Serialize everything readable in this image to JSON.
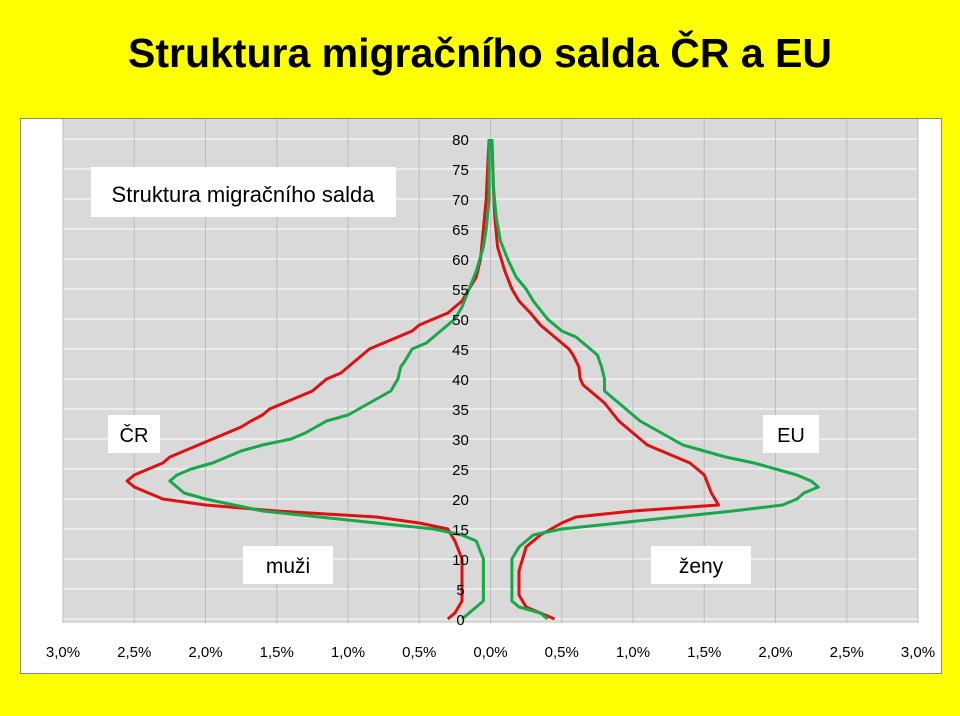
{
  "page": {
    "title": "Struktura migračního salda ČR a EU"
  },
  "chart_data": {
    "type": "line",
    "title": "Struktura migračního salda",
    "left_label": "muži",
    "right_label": "ženy",
    "yticks": [
      "0",
      "5",
      "10",
      "15",
      "20",
      "25",
      "30",
      "35",
      "40",
      "45",
      "50",
      "55",
      "60",
      "65",
      "70",
      "75",
      "80"
    ],
    "xticks": [
      "3,0%",
      "2,5%",
      "2,0%",
      "1,5%",
      "1,0%",
      "0,5%",
      "0,0%",
      "0,5%",
      "1,0%",
      "1,5%",
      "2,0%",
      "2,5%",
      "3,0%"
    ],
    "xlim": [
      -3.0,
      3.0
    ],
    "ylim": [
      0,
      80
    ],
    "grid": true,
    "series": [
      {
        "name": "ČR",
        "color": "#e01010",
        "side": "left",
        "points": [
          [
            0.3,
            0
          ],
          [
            0.25,
            1
          ],
          [
            0.2,
            3
          ],
          [
            0.2,
            6
          ],
          [
            0.2,
            10
          ],
          [
            0.25,
            13
          ],
          [
            0.3,
            15
          ],
          [
            0.5,
            16
          ],
          [
            0.8,
            17
          ],
          [
            1.5,
            18
          ],
          [
            2.0,
            19
          ],
          [
            2.3,
            20
          ],
          [
            2.4,
            21
          ],
          [
            2.5,
            22
          ],
          [
            2.55,
            23
          ],
          [
            2.5,
            24
          ],
          [
            2.4,
            25
          ],
          [
            2.3,
            26
          ],
          [
            2.25,
            27
          ],
          [
            2.15,
            28
          ],
          [
            2.05,
            29
          ],
          [
            1.95,
            30
          ],
          [
            1.85,
            31
          ],
          [
            1.75,
            32
          ],
          [
            1.68,
            33
          ],
          [
            1.6,
            34
          ],
          [
            1.55,
            35
          ],
          [
            1.45,
            36
          ],
          [
            1.35,
            37
          ],
          [
            1.25,
            38
          ],
          [
            1.15,
            40
          ],
          [
            1.05,
            41
          ],
          [
            1.0,
            42
          ],
          [
            0.95,
            43
          ],
          [
            0.9,
            44
          ],
          [
            0.85,
            45
          ],
          [
            0.75,
            46
          ],
          [
            0.65,
            47
          ],
          [
            0.55,
            48
          ],
          [
            0.5,
            49
          ],
          [
            0.4,
            50
          ],
          [
            0.3,
            51
          ],
          [
            0.2,
            53
          ],
          [
            0.15,
            55
          ],
          [
            0.1,
            57
          ],
          [
            0.07,
            60
          ],
          [
            0.05,
            65
          ],
          [
            0.03,
            70
          ],
          [
            0.02,
            75
          ],
          [
            0.01,
            80
          ]
        ]
      },
      {
        "name": "ČR",
        "color": "#e01010",
        "side": "right",
        "points": [
          [
            0.45,
            0
          ],
          [
            0.35,
            1
          ],
          [
            0.25,
            2
          ],
          [
            0.2,
            4
          ],
          [
            0.2,
            8
          ],
          [
            0.25,
            12
          ],
          [
            0.35,
            14
          ],
          [
            0.5,
            16
          ],
          [
            0.6,
            17
          ],
          [
            1.0,
            18
          ],
          [
            1.6,
            19
          ],
          [
            1.55,
            21
          ],
          [
            1.5,
            24
          ],
          [
            1.4,
            26
          ],
          [
            1.3,
            27
          ],
          [
            1.2,
            28
          ],
          [
            1.1,
            29
          ],
          [
            1.0,
            31
          ],
          [
            0.9,
            33
          ],
          [
            0.8,
            36
          ],
          [
            0.7,
            38
          ],
          [
            0.65,
            39
          ],
          [
            0.63,
            40
          ],
          [
            0.62,
            42
          ],
          [
            0.58,
            44
          ],
          [
            0.55,
            45
          ],
          [
            0.5,
            46
          ],
          [
            0.4,
            48
          ],
          [
            0.35,
            49
          ],
          [
            0.28,
            51
          ],
          [
            0.2,
            53
          ],
          [
            0.15,
            55
          ],
          [
            0.1,
            58
          ],
          [
            0.05,
            62
          ],
          [
            0.03,
            67
          ],
          [
            0.02,
            72
          ],
          [
            0.01,
            80
          ]
        ]
      },
      {
        "name": "EU",
        "color": "#18a84a",
        "side": "left",
        "points": [
          [
            0.2,
            0
          ],
          [
            0.1,
            2
          ],
          [
            0.05,
            3
          ],
          [
            0.05,
            6
          ],
          [
            0.05,
            10
          ],
          [
            0.1,
            13
          ],
          [
            0.2,
            14
          ],
          [
            0.4,
            15
          ],
          [
            0.8,
            16
          ],
          [
            1.2,
            17
          ],
          [
            1.6,
            18
          ],
          [
            1.8,
            19
          ],
          [
            2.0,
            20
          ],
          [
            2.15,
            21
          ],
          [
            2.2,
            22
          ],
          [
            2.25,
            23
          ],
          [
            2.2,
            24
          ],
          [
            2.1,
            25
          ],
          [
            1.95,
            26
          ],
          [
            1.75,
            28
          ],
          [
            1.6,
            29
          ],
          [
            1.4,
            30
          ],
          [
            1.3,
            31
          ],
          [
            1.15,
            33
          ],
          [
            1.0,
            34
          ],
          [
            0.85,
            36
          ],
          [
            0.7,
            38
          ],
          [
            0.65,
            40
          ],
          [
            0.63,
            42
          ],
          [
            0.6,
            43
          ],
          [
            0.55,
            45
          ],
          [
            0.45,
            46
          ],
          [
            0.35,
            48
          ],
          [
            0.25,
            50
          ],
          [
            0.2,
            52
          ],
          [
            0.15,
            55
          ],
          [
            0.1,
            58
          ],
          [
            0.05,
            62
          ],
          [
            0.03,
            65
          ],
          [
            0.01,
            70
          ],
          [
            0.01,
            80
          ]
        ]
      },
      {
        "name": "EU",
        "color": "#18a84a",
        "side": "right",
        "points": [
          [
            0.4,
            0
          ],
          [
            0.35,
            1
          ],
          [
            0.2,
            2
          ],
          [
            0.15,
            3
          ],
          [
            0.15,
            6
          ],
          [
            0.15,
            10
          ],
          [
            0.2,
            12
          ],
          [
            0.3,
            14
          ],
          [
            0.5,
            15
          ],
          [
            0.9,
            16
          ],
          [
            1.3,
            17
          ],
          [
            1.7,
            18
          ],
          [
            2.05,
            19
          ],
          [
            2.15,
            20
          ],
          [
            2.2,
            21
          ],
          [
            2.3,
            22
          ],
          [
            2.25,
            23
          ],
          [
            2.15,
            24
          ],
          [
            2.0,
            25
          ],
          [
            1.85,
            26
          ],
          [
            1.65,
            27
          ],
          [
            1.5,
            28
          ],
          [
            1.35,
            29
          ],
          [
            1.2,
            31
          ],
          [
            1.05,
            33
          ],
          [
            0.95,
            35
          ],
          [
            0.85,
            37
          ],
          [
            0.8,
            38
          ],
          [
            0.8,
            40
          ],
          [
            0.78,
            42
          ],
          [
            0.75,
            44
          ],
          [
            0.7,
            45
          ],
          [
            0.6,
            47
          ],
          [
            0.5,
            48
          ],
          [
            0.4,
            50
          ],
          [
            0.3,
            53
          ],
          [
            0.25,
            55
          ],
          [
            0.18,
            57
          ],
          [
            0.12,
            60
          ],
          [
            0.07,
            63
          ],
          [
            0.04,
            67
          ],
          [
            0.02,
            72
          ],
          [
            0.01,
            80
          ]
        ]
      }
    ],
    "labels": {
      "left_country": "ČR",
      "right_region": "EU"
    }
  }
}
